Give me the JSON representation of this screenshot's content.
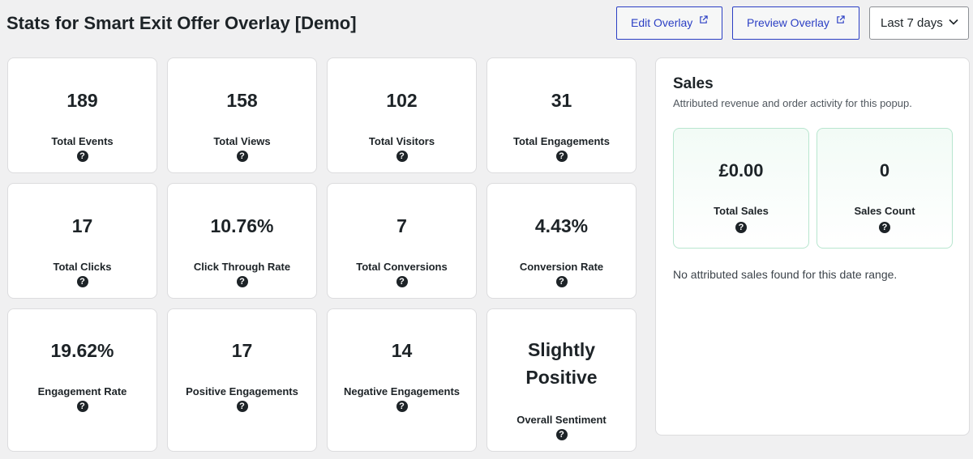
{
  "header": {
    "title": "Stats for Smart Exit Offer Overlay [Demo]",
    "edit_label": "Edit Overlay",
    "preview_label": "Preview Overlay",
    "date_range": "Last 7 days"
  },
  "stats": [
    {
      "value": "189",
      "label": "Total Events"
    },
    {
      "value": "158",
      "label": "Total Views"
    },
    {
      "value": "102",
      "label": "Total Visitors"
    },
    {
      "value": "31",
      "label": "Total Engagements"
    },
    {
      "value": "17",
      "label": "Total Clicks"
    },
    {
      "value": "10.76%",
      "label": "Click Through Rate"
    },
    {
      "value": "7",
      "label": "Total Conversions"
    },
    {
      "value": "4.43%",
      "label": "Conversion Rate"
    },
    {
      "value": "19.62%",
      "label": "Engagement Rate"
    },
    {
      "value": "17",
      "label": "Positive Engagements"
    },
    {
      "value": "14",
      "label": "Negative Engagements"
    },
    {
      "value_line1": "Slightly",
      "value_line2": "Positive",
      "label": "Overall Sentiment"
    }
  ],
  "sales": {
    "title": "Sales",
    "subtitle": "Attributed revenue and order activity for this popup.",
    "cards": [
      {
        "value": "£0.00",
        "label": "Total Sales"
      },
      {
        "value": "0",
        "label": "Sales Count"
      }
    ],
    "empty_message": "No attributed sales found for this date range."
  },
  "icons": {
    "help": "help-icon",
    "external": "external-link-icon",
    "chevron": "chevron-down-icon"
  },
  "colors": {
    "accent": "#2b3fc4",
    "sales_border": "#b8e6cf"
  }
}
